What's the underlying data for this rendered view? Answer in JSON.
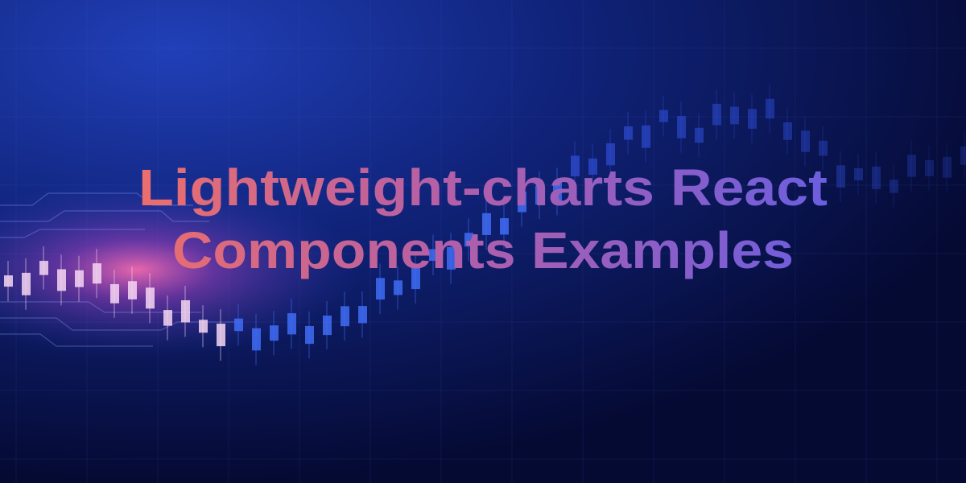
{
  "banner": {
    "title_lines": [
      "Lightweight-charts React",
      "Components Examples"
    ]
  }
}
